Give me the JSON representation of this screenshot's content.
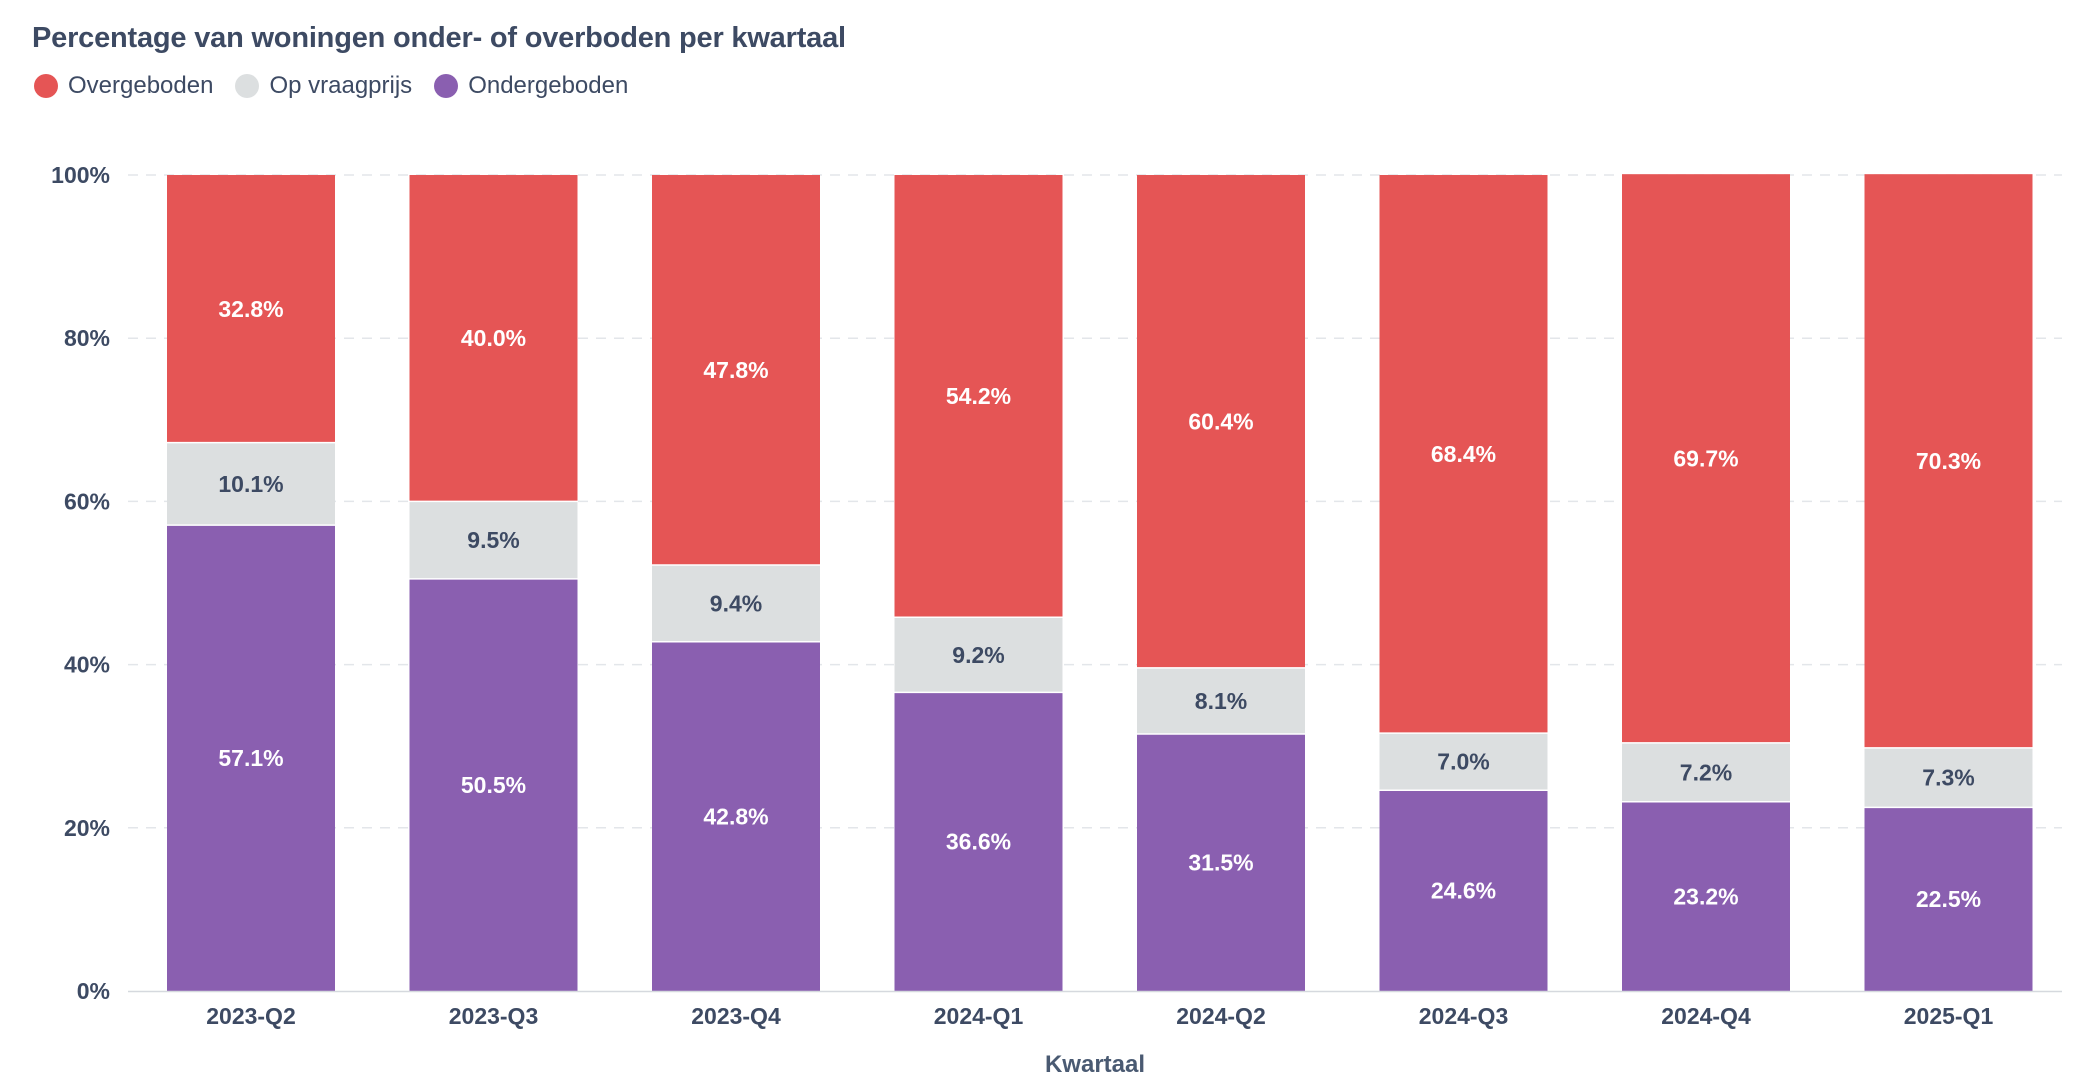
{
  "chart_data": {
    "type": "bar",
    "stacked": true,
    "title": "Percentage van woningen onder- of overboden per kwartaal",
    "xlabel": "Kwartaal",
    "ylabel": "",
    "ylim": [
      0,
      100
    ],
    "yticks": [
      0,
      20,
      40,
      60,
      80,
      100
    ],
    "ytick_labels": [
      "0%",
      "20%",
      "40%",
      "60%",
      "80%",
      "100%"
    ],
    "grid": true,
    "legend_position": "top-left",
    "categories": [
      "2023-Q2",
      "2023-Q3",
      "2023-Q4",
      "2024-Q1",
      "2024-Q2",
      "2024-Q3",
      "2024-Q4",
      "2025-Q1"
    ],
    "series": [
      {
        "name": "Ondergeboden",
        "color": "#8a5fb0",
        "label_color": "#ffffff",
        "values": [
          57.1,
          50.5,
          42.8,
          36.6,
          31.5,
          24.6,
          23.2,
          22.5
        ],
        "labels": [
          "57.1%",
          "50.5%",
          "42.8%",
          "36.6%",
          "31.5%",
          "24.6%",
          "23.2%",
          "22.5%"
        ]
      },
      {
        "name": "Op vraagprijs",
        "color": "#dcdfe0",
        "label_color": "#3d4a63",
        "values": [
          10.1,
          9.5,
          9.4,
          9.2,
          8.1,
          7.0,
          7.2,
          7.3
        ],
        "labels": [
          "10.1%",
          "9.5%",
          "9.4%",
          "9.2%",
          "8.1%",
          "7.0%",
          "7.2%",
          "7.3%"
        ]
      },
      {
        "name": "Overgeboden",
        "color": "#e55555",
        "label_color": "#ffffff",
        "values": [
          32.8,
          40.0,
          47.8,
          54.2,
          60.4,
          68.4,
          69.7,
          70.3
        ],
        "labels": [
          "32.8%",
          "40.0%",
          "47.8%",
          "54.2%",
          "60.4%",
          "68.4%",
          "69.7%",
          "70.3%"
        ]
      }
    ],
    "legend": [
      {
        "name": "Overgeboden",
        "color": "#e55555"
      },
      {
        "name": "Op vraagprijs",
        "color": "#dcdfe0"
      },
      {
        "name": "Ondergeboden",
        "color": "#8a5fb0"
      }
    ]
  }
}
